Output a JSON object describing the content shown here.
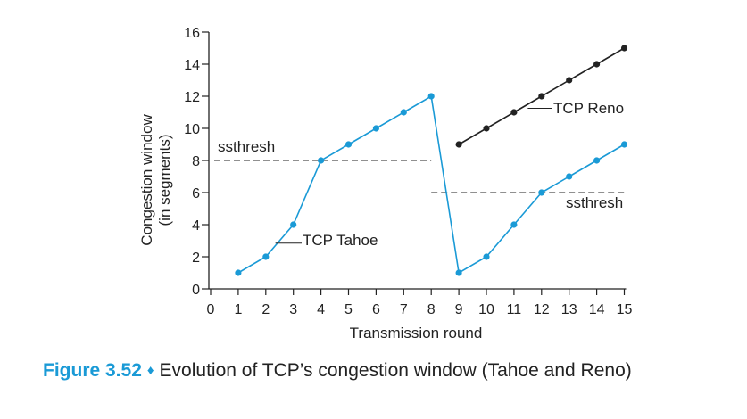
{
  "chart_data": {
    "type": "line",
    "xlabel": "Transmission round",
    "ylabel_line1": "Congestion window",
    "ylabel_line2": "(in segments)",
    "xlim": [
      0,
      15
    ],
    "ylim": [
      0,
      16
    ],
    "x_ticks": [
      0,
      1,
      2,
      3,
      4,
      5,
      6,
      7,
      8,
      9,
      10,
      11,
      12,
      13,
      14,
      15
    ],
    "y_ticks": [
      0,
      2,
      4,
      6,
      8,
      10,
      12,
      14,
      16
    ],
    "grid": false,
    "series": [
      {
        "name": "TCP Tahoe",
        "color": "#1a9ad6",
        "x": [
          1,
          2,
          3,
          4,
          5,
          6,
          7,
          8,
          9,
          10,
          11,
          12,
          13,
          14,
          15
        ],
        "y": [
          1,
          2,
          4,
          8,
          9,
          10,
          11,
          12,
          1,
          2,
          4,
          6,
          7,
          8,
          9
        ]
      },
      {
        "name": "TCP Reno",
        "color": "#222222",
        "x": [
          9,
          10,
          11,
          12,
          13,
          14,
          15
        ],
        "y": [
          9,
          10,
          11,
          12,
          13,
          14,
          15
        ]
      }
    ],
    "thresholds": [
      {
        "label": "ssthresh",
        "value": 8,
        "x_start": 0,
        "x_end": 8
      },
      {
        "label": "ssthresh",
        "value": 6,
        "x_start": 8,
        "x_end": 15
      }
    ],
    "annotations": {
      "tahoe_label": "TCP Tahoe",
      "reno_label": "TCP Reno",
      "ssthresh_left": "ssthresh",
      "ssthresh_right": "ssthresh"
    }
  },
  "caption": {
    "figure_label": "Figure 3.52",
    "separator": "♦",
    "text": "Evolution of TCP’s congestion window (Tahoe and Reno)"
  }
}
